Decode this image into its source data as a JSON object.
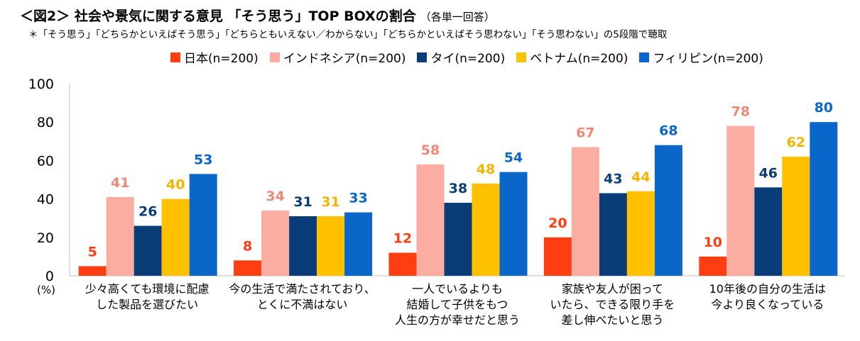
{
  "title": "＜図2＞ 社会や景気に関する意見 「そう思う」TOP BOXの割合",
  "title_note": "（各単一回答）",
  "subtitle": "＊「そう思う」「どちらかといえばそう思う」「どちらともいえない／わからない」「どちらかといえばそう思わない」「そう思わない」の5段階で聴取",
  "unit_label": "(%)",
  "chart_data": {
    "type": "bar",
    "title": "社会や景気に関する意見 「そう思う」TOP BOXの割合",
    "xlabel": "",
    "ylabel": "(%)",
    "ylim": [
      0,
      100
    ],
    "yticks": [
      0,
      20,
      40,
      60,
      80,
      100
    ],
    "grid": false,
    "legend_position": "top",
    "categories": [
      "少々高くても環境に配慮\nした製品を選びたい",
      "今の生活で満たされており、\nとくに不満はない",
      "一人でいるよりも\n結婚して子供をもつ\n人生の方が幸せだと思う",
      "家族や友人が困って\nいたら、できる限り手を\n差し伸べたいと思う",
      "10年後の自分の生活は\n今より良くなっている"
    ],
    "series": [
      {
        "name": "日本(n=200)",
        "color": "#FF3D12",
        "label_color": "#FF3D12",
        "values": [
          5,
          8,
          12,
          20,
          10
        ]
      },
      {
        "name": "インドネシア(n=200)",
        "color": "#FAADA0",
        "label_color": "#F08878",
        "values": [
          41,
          34,
          58,
          67,
          78
        ]
      },
      {
        "name": "タイ(n=200)",
        "color": "#0A3D78",
        "label_color": "#0A3D78",
        "values": [
          26,
          31,
          38,
          43,
          46
        ]
      },
      {
        "name": "ベトナム(n=200)",
        "color": "#FFC000",
        "label_color": "#F5B400",
        "values": [
          40,
          31,
          48,
          44,
          62
        ]
      },
      {
        "name": "フィリピン(n=200)",
        "color": "#0A66C8",
        "label_color": "#0A66C8",
        "values": [
          53,
          33,
          54,
          68,
          80
        ]
      }
    ]
  }
}
